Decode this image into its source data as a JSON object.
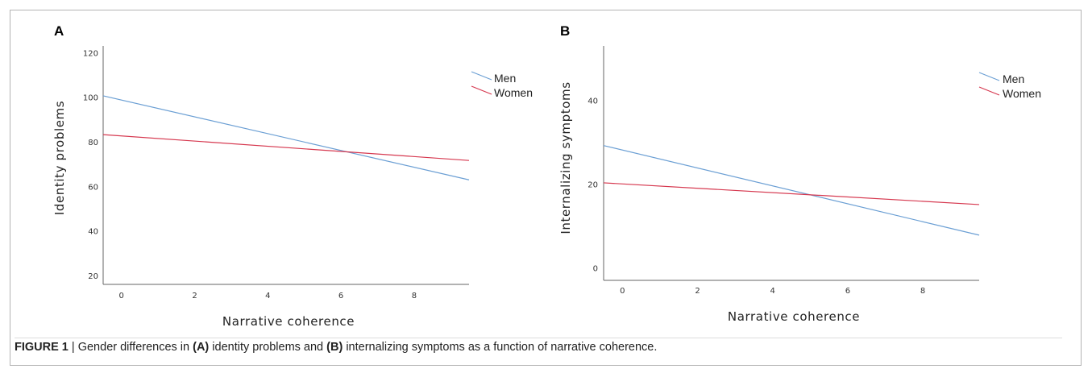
{
  "chart_data": [
    {
      "panel": "A",
      "type": "line",
      "xlabel": "Narrative coherence",
      "ylabel": "Identity problems",
      "xlim": [
        -0.5,
        9.5
      ],
      "ylim": [
        16,
        123
      ],
      "xticks": [
        0,
        2,
        4,
        6,
        8
      ],
      "yticks": [
        20,
        40,
        60,
        80,
        100,
        120
      ],
      "legend_position": "top-right",
      "grid": false,
      "series": [
        {
          "name": "Men",
          "color": "#6b9fd4",
          "x": [
            -0.5,
            9.5
          ],
          "y": [
            100.6,
            62.9
          ]
        },
        {
          "name": "Women",
          "color": "#d6384f",
          "x": [
            -0.5,
            9.5
          ],
          "y": [
            83.2,
            71.6
          ]
        }
      ]
    },
    {
      "panel": "B",
      "type": "line",
      "xlabel": "Narrative coherence",
      "ylabel": "Internalizing symptoms",
      "xlim": [
        -0.5,
        9.5
      ],
      "ylim": [
        -3,
        53
      ],
      "xticks": [
        0,
        2,
        4,
        6,
        8
      ],
      "yticks": [
        0,
        20,
        40
      ],
      "legend_position": "top-right",
      "grid": false,
      "series": [
        {
          "name": "Men",
          "color": "#6b9fd4",
          "x": [
            -0.5,
            9.5
          ],
          "y": [
            29.2,
            7.8
          ]
        },
        {
          "name": "Women",
          "color": "#d6384f",
          "x": [
            -0.5,
            9.5
          ],
          "y": [
            20.3,
            15.1
          ]
        }
      ]
    }
  ],
  "caption": {
    "label": "FIGURE 1",
    "separator": "|",
    "text_1": "Gender differences in",
    "ref_a": "(A)",
    "text_2": "identity problems and",
    "ref_b": "(B)",
    "text_3": "internalizing symptoms as a function of narrative coherence."
  }
}
